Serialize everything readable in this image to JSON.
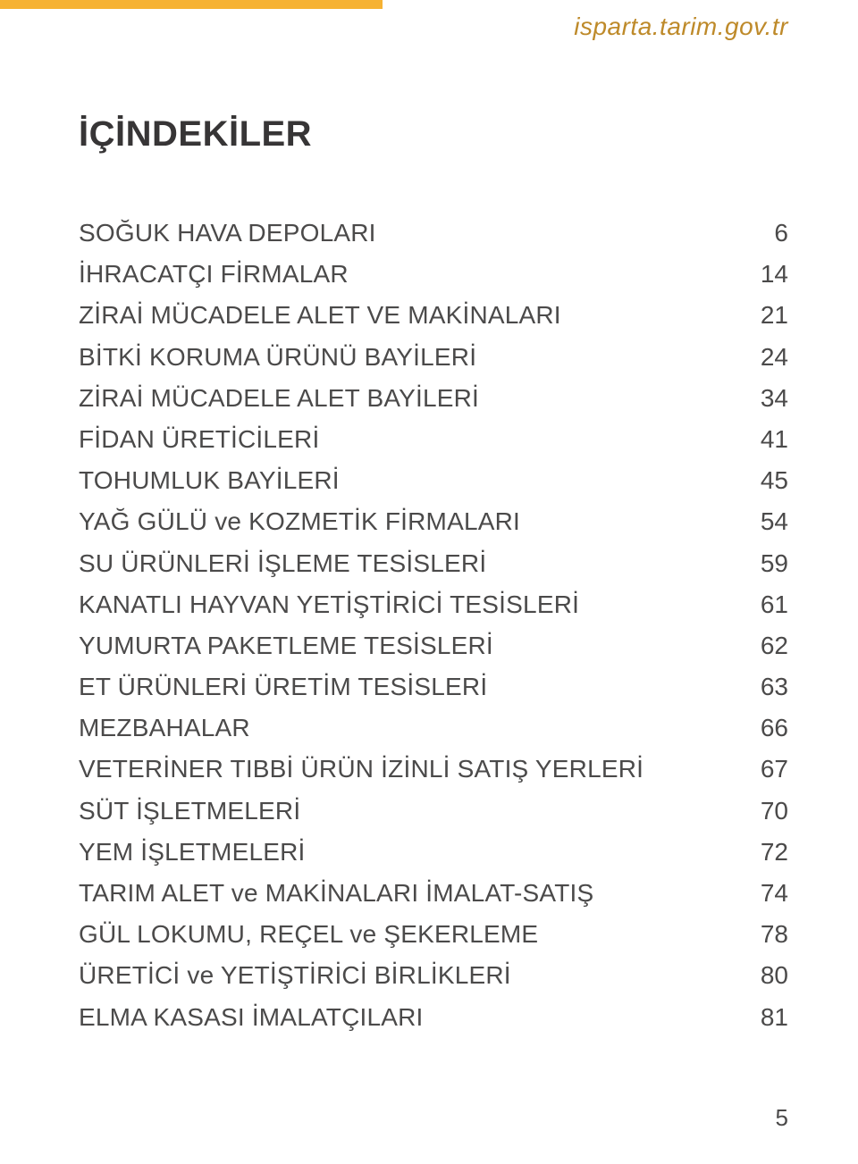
{
  "header": {
    "bar_color": "#f6b233",
    "url": "isparta.tarim.gov.tr",
    "url_color": "#be8a2a"
  },
  "title": "İÇİNDEKİLER",
  "title_color": "#373536",
  "toc_color": "#4b4a4a",
  "toc": [
    {
      "label": "SOĞUK HAVA DEPOLARI",
      "page": "6"
    },
    {
      "label": "İHRACATÇI FİRMALAR",
      "page": "14"
    },
    {
      "label": "ZİRAİ MÜCADELE ALET VE MAKİNALARI",
      "page": "21"
    },
    {
      "label": "BİTKİ KORUMA ÜRÜNÜ BAYİLERİ",
      "page": "24"
    },
    {
      "label": "ZİRAİ MÜCADELE  ALET BAYİLERİ",
      "page": "34"
    },
    {
      "label": "FİDAN ÜRETİCİLERİ",
      "page": "41"
    },
    {
      "label": "TOHUMLUK BAYİLERİ",
      "page": "45"
    },
    {
      "label": "YAĞ GÜLÜ ve KOZMETİK FİRMALARI",
      "page": "54"
    },
    {
      "label": "SU ÜRÜNLERİ İŞLEME TESİSLERİ",
      "page": "59"
    },
    {
      "label": "KANATLI HAYVAN YETİŞTİRİCİ TESİSLERİ",
      "page": "61"
    },
    {
      "label": "YUMURTA PAKETLEME TESİSLERİ",
      "page": "62"
    },
    {
      "label": "ET ÜRÜNLERİ ÜRETİM TESİSLERİ",
      "page": "63"
    },
    {
      "label": "MEZBAHALAR",
      "page": "66"
    },
    {
      "label": "VETERİNER TIBBİ ÜRÜN İZİNLİ SATIŞ YERLERİ",
      "page": "67"
    },
    {
      "label": "SÜT İŞLETMELERİ",
      "page": "70"
    },
    {
      "label": "YEM İŞLETMELERİ",
      "page": "72"
    },
    {
      "label": "TARIM ALET ve MAKİNALARI İMALAT-SATIŞ",
      "page": "74"
    },
    {
      "label": "GÜL LOKUMU, REÇEL ve ŞEKERLEME",
      "page": "78"
    },
    {
      "label": "ÜRETİCİ  ve YETİŞTİRİCİ BİRLİKLERİ",
      "page": "80"
    },
    {
      "label": "ELMA KASASI İMALATÇILARI",
      "page": "81"
    }
  ],
  "page_number": "5",
  "page_number_color": "#4b4a4a"
}
